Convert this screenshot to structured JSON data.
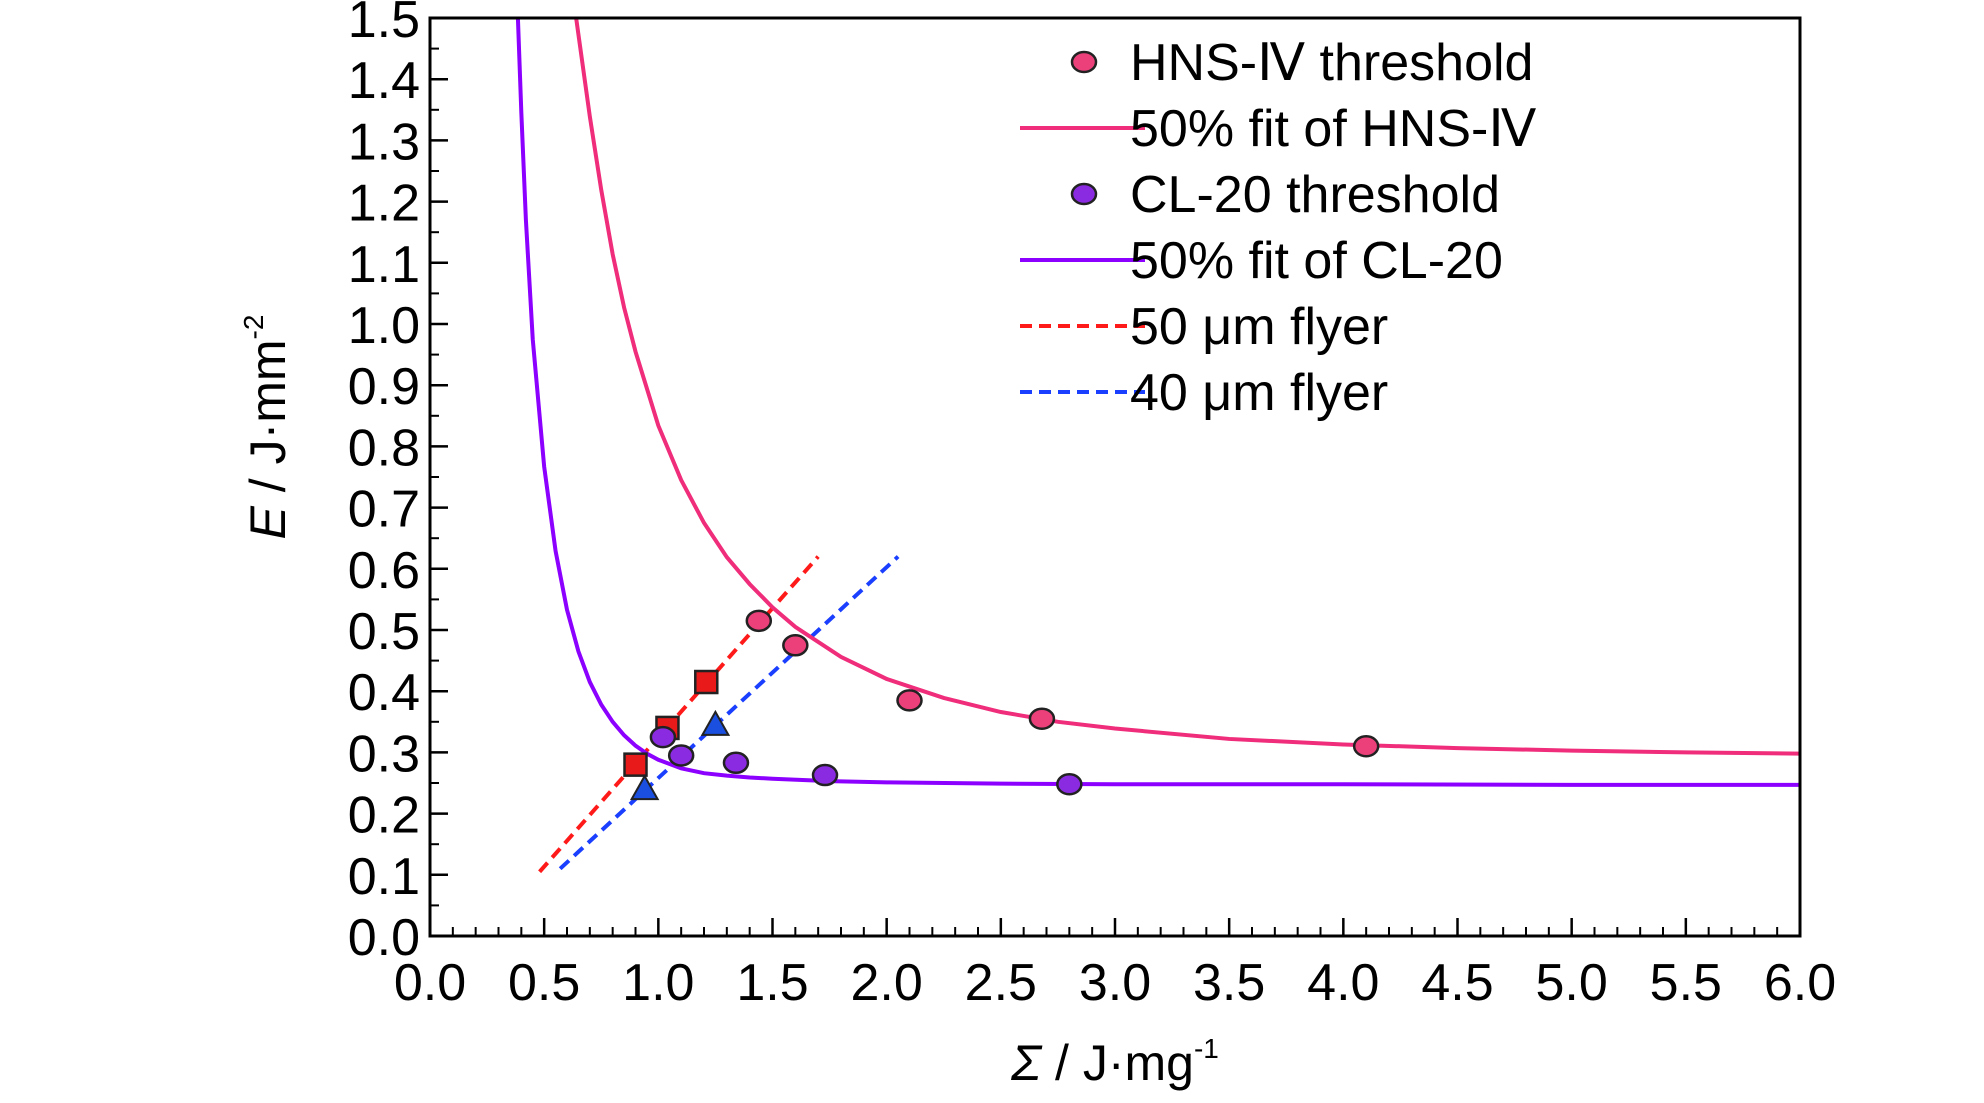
{
  "chart_data": {
    "type": "scatter",
    "xlabel_symbol": "Σ",
    "xlabel_rest": " / J·mg",
    "xlabel_sup": "-1",
    "ylabel_symbol": "E",
    "ylabel_rest": " / J·mm",
    "ylabel_sup": "-2",
    "xlim": [
      0.0,
      6.0
    ],
    "ylim": [
      0.0,
      1.5
    ],
    "xticks": [
      0.0,
      0.5,
      1.0,
      1.5,
      2.0,
      2.5,
      3.0,
      3.5,
      4.0,
      4.5,
      5.0,
      5.5,
      6.0
    ],
    "xtick_labels": [
      "0.0",
      "0.5",
      "1.0",
      "1.5",
      "2.0",
      "2.5",
      "3.0",
      "3.5",
      "4.0",
      "4.5",
      "5.0",
      "5.5",
      "6.0"
    ],
    "yticks": [
      0.0,
      0.1,
      0.2,
      0.3,
      0.4,
      0.5,
      0.6,
      0.7,
      0.8,
      0.9,
      1.0,
      1.1,
      1.2,
      1.3,
      1.4,
      1.5
    ],
    "ytick_labels": [
      "0.0",
      "0.1",
      "0.2",
      "0.3",
      "0.4",
      "0.5",
      "0.6",
      "0.7",
      "0.8",
      "0.9",
      "1.0",
      "1.1",
      "1.2",
      "1.3",
      "1.4",
      "1.5"
    ],
    "grid": false,
    "legend_position": "top-right",
    "series": [
      {
        "name": "HNS-Ⅳ threshold",
        "kind": "scatter",
        "marker": "circle",
        "color": "#ec407a",
        "x": [
          1.44,
          1.6,
          2.1,
          2.68,
          4.1
        ],
        "y": [
          0.515,
          0.475,
          0.385,
          0.355,
          0.31
        ]
      },
      {
        "name": "50% fit of HNS-Ⅳ",
        "kind": "line",
        "color": "#ef2d7a",
        "x": [
          0.64,
          0.7,
          0.75,
          0.8,
          0.85,
          0.9,
          1.0,
          1.1,
          1.2,
          1.3,
          1.4,
          1.5,
          1.6,
          1.8,
          2.0,
          2.25,
          2.5,
          2.75,
          3.0,
          3.5,
          4.0,
          4.5,
          5.0,
          5.5,
          6.0
        ],
        "y": [
          1.5,
          1.339,
          1.219,
          1.114,
          1.027,
          0.955,
          0.834,
          0.745,
          0.675,
          0.619,
          0.575,
          0.537,
          0.505,
          0.456,
          0.42,
          0.389,
          0.366,
          0.35,
          0.339,
          0.322,
          0.313,
          0.307,
          0.303,
          0.3,
          0.298
        ]
      },
      {
        "name": "CL-20 threshold",
        "kind": "scatter",
        "marker": "circle",
        "color": "#8a2be2",
        "x": [
          1.02,
          1.1,
          1.34,
          1.73,
          2.8
        ],
        "y": [
          0.325,
          0.295,
          0.283,
          0.263,
          0.248
        ]
      },
      {
        "name": "50% fit of CL-20",
        "kind": "line",
        "color": "#8b00ff",
        "x": [
          0.385,
          0.4,
          0.42,
          0.45,
          0.5,
          0.55,
          0.6,
          0.65,
          0.7,
          0.75,
          0.8,
          0.85,
          0.9,
          0.95,
          1.0,
          1.1,
          1.2,
          1.3,
          1.4,
          1.5,
          1.75,
          2.0,
          2.5,
          3.0,
          3.5,
          4.0,
          5.0,
          6.0
        ],
        "y": [
          1.5,
          1.345,
          1.17,
          0.975,
          0.767,
          0.629,
          0.533,
          0.465,
          0.415,
          0.378,
          0.35,
          0.328,
          0.311,
          0.298,
          0.288,
          0.274,
          0.266,
          0.262,
          0.259,
          0.257,
          0.253,
          0.251,
          0.249,
          0.248,
          0.248,
          0.248,
          0.247,
          0.247
        ]
      },
      {
        "name": "50 μm flyer",
        "kind": "dashed-line",
        "color": "#ff1a1a",
        "marker": "square",
        "marker_color": "#e81a1a",
        "line_x": [
          0.48,
          1.7
        ],
        "line_y": [
          0.105,
          0.62
        ],
        "x": [
          0.9,
          1.04,
          1.21
        ],
        "y": [
          0.28,
          0.34,
          0.415
        ]
      },
      {
        "name": "40 μm flyer",
        "kind": "dashed-line",
        "color": "#1a3fff",
        "marker": "triangle",
        "marker_color": "#1a4fe0",
        "line_x": [
          0.57,
          2.05
        ],
        "line_y": [
          0.11,
          0.62
        ],
        "x": [
          0.94,
          1.25
        ],
        "y": [
          0.24,
          0.345
        ]
      }
    ]
  }
}
